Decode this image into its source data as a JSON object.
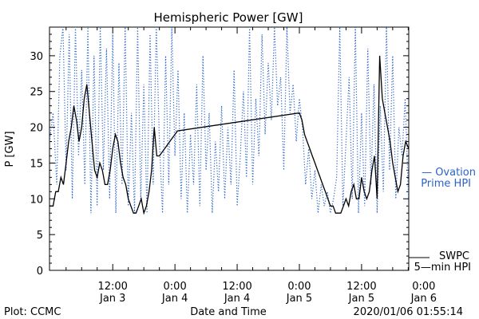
{
  "chart_data": {
    "type": "line",
    "title": "Hemispheric Power [GW]",
    "xlabel": "Date and Time",
    "ylabel": "P [GW]",
    "ylim": [
      0,
      34
    ],
    "yticks": [
      0,
      5,
      10,
      15,
      20,
      25,
      30
    ],
    "xlim_hours": [
      -12.2,
      57.1
    ],
    "xticks": [
      {
        "hour": 0,
        "time": "12:00",
        "date": "Jan 3"
      },
      {
        "hour": 12,
        "time": "0:00",
        "date": "Jan 4"
      },
      {
        "hour": 24,
        "time": "12:00",
        "date": "Jan 4"
      },
      {
        "hour": 36,
        "time": "0:00",
        "date": "Jan 5"
      },
      {
        "hour": 48,
        "time": "12:00",
        "date": "Jan 5"
      },
      {
        "hour": 60,
        "time": "0:00",
        "date": "Jan 6"
      }
    ],
    "series": [
      {
        "name": "SWPC 5-min HPI",
        "color": "#000000",
        "style": "solid",
        "x": [
          -12.2,
          -11.5,
          -11.0,
          -10.5,
          -10.0,
          -9.5,
          -9.0,
          -8.5,
          -8.0,
          -7.5,
          -7.0,
          -6.5,
          -6.0,
          -5.5,
          -5.0,
          -4.5,
          -4.0,
          -3.5,
          -3.0,
          -2.5,
          -2.0,
          -1.5,
          -1.0,
          -0.5,
          0.0,
          0.5,
          1.0,
          1.5,
          2.0,
          2.5,
          3.0,
          3.5,
          4.0,
          4.5,
          5.0,
          5.5,
          6.0,
          6.5,
          7.0,
          7.5,
          8.0,
          8.5,
          9.0,
          9.5,
          10.0,
          10.5,
          11.0,
          11.5,
          12.0,
          12.5,
          36.0,
          36.5,
          37.0,
          37.5,
          38.0,
          38.5,
          39.0,
          39.5,
          40.0,
          40.5,
          41.0,
          41.5,
          42.0,
          42.5,
          43.0,
          43.5,
          44.0,
          44.5,
          45.0,
          45.5,
          46.0,
          46.5,
          47.0,
          47.5,
          48.0,
          48.5,
          49.0,
          49.5,
          50.0,
          50.5,
          51.0,
          51.5,
          52.0,
          52.5,
          53.0,
          53.5,
          54.0,
          54.5,
          55.0,
          55.5,
          56.0,
          56.5,
          57.1
        ],
        "y": [
          9,
          9,
          11,
          11,
          13,
          12,
          15,
          18,
          20,
          23,
          21,
          18,
          20,
          24,
          26,
          22,
          18,
          14,
          13,
          15,
          14,
          12,
          12,
          14,
          17,
          19,
          18,
          15,
          13,
          12,
          10,
          9,
          8,
          8,
          9,
          10,
          8,
          9,
          11,
          14,
          20,
          16,
          16,
          16.5,
          17,
          17.5,
          18,
          18.5,
          19,
          19.5,
          22,
          21,
          19,
          18,
          17,
          16,
          15,
          14,
          13,
          12,
          11,
          10,
          9,
          9,
          8,
          8,
          8,
          9,
          10,
          9,
          11,
          12,
          10,
          10,
          13,
          11,
          10,
          11,
          14,
          16,
          10,
          30,
          24,
          22,
          20,
          18,
          15,
          13,
          11,
          12,
          16,
          18,
          17
        ]
      },
      {
        "name": "Ovation Prime HPI",
        "color": "#2a63c9",
        "style": "dotted",
        "x": [
          -12.2,
          -11.5,
          -10.8,
          -10.2,
          -9.6,
          -9.0,
          -8.4,
          -7.8,
          -7.2,
          -6.6,
          -6.0,
          -5.4,
          -4.8,
          -4.2,
          -3.6,
          -3.0,
          -2.4,
          -1.8,
          -1.2,
          -0.6,
          0.0,
          0.6,
          1.2,
          1.8,
          2.4,
          3.0,
          3.6,
          4.2,
          4.8,
          5.4,
          6.0,
          6.6,
          7.2,
          7.8,
          8.4,
          9.0,
          9.6,
          10.2,
          10.8,
          11.4,
          12.0,
          12.6,
          13.2,
          13.8,
          14.4,
          15.0,
          15.6,
          16.2,
          16.8,
          17.4,
          18.0,
          18.6,
          19.2,
          19.8,
          20.4,
          21.0,
          21.6,
          22.2,
          22.8,
          23.4,
          24.0,
          24.6,
          25.2,
          25.8,
          26.4,
          27.0,
          27.6,
          28.2,
          28.8,
          29.4,
          30.0,
          30.6,
          31.2,
          31.8,
          32.4,
          33.0,
          33.6,
          34.2,
          34.8,
          35.4,
          36.0,
          36.6,
          37.2,
          37.8,
          38.4,
          39.0,
          39.6,
          40.2,
          40.8,
          41.4,
          42.0,
          42.6,
          43.2,
          43.8,
          44.4,
          45.0,
          45.6,
          46.2,
          46.8,
          47.4,
          48.0,
          48.6,
          49.2,
          49.8,
          50.4,
          51.0,
          51.6,
          52.2,
          52.8,
          53.4,
          54.0,
          54.6,
          55.2,
          55.8,
          56.4,
          57.1
        ],
        "y": [
          18,
          22,
          12,
          30,
          34,
          14,
          33,
          10,
          34,
          16,
          28,
          12,
          34,
          8,
          30,
          9,
          34,
          14,
          31,
          10,
          33,
          8,
          29,
          12,
          34,
          9,
          22,
          8,
          34,
          10,
          26,
          8,
          33,
          12,
          34,
          18,
          8,
          30,
          12,
          34,
          16,
          28,
          10,
          22,
          8,
          19,
          12,
          26,
          9,
          30,
          14,
          22,
          8,
          18,
          11,
          23,
          10,
          20,
          12,
          28,
          9,
          16,
          25,
          13,
          34,
          12,
          24,
          16,
          33,
          19,
          29,
          21,
          34,
          23,
          27,
          14,
          34,
          22,
          26,
          18,
          24,
          20,
          12,
          17,
          10,
          14,
          8,
          12,
          9,
          11,
          8,
          10,
          13,
          34,
          9,
          18,
          27,
          10,
          34,
          8,
          22,
          9,
          31,
          12,
          26,
          8,
          23,
          11,
          34,
          14,
          30,
          10,
          20,
          16,
          24,
          9
        ]
      }
    ],
    "legend": [
      {
        "label1": "— Ovation",
        "label2": "Prime HPI",
        "color": "#2a63c9"
      },
      {
        "label1": "SWPC",
        "label2": "5—min HPI",
        "color": "#000000"
      }
    ],
    "legend_position": "right",
    "grid": false
  },
  "footer": {
    "left": "Plot: CCMC",
    "right": "2020/01/06 01:55:14"
  }
}
